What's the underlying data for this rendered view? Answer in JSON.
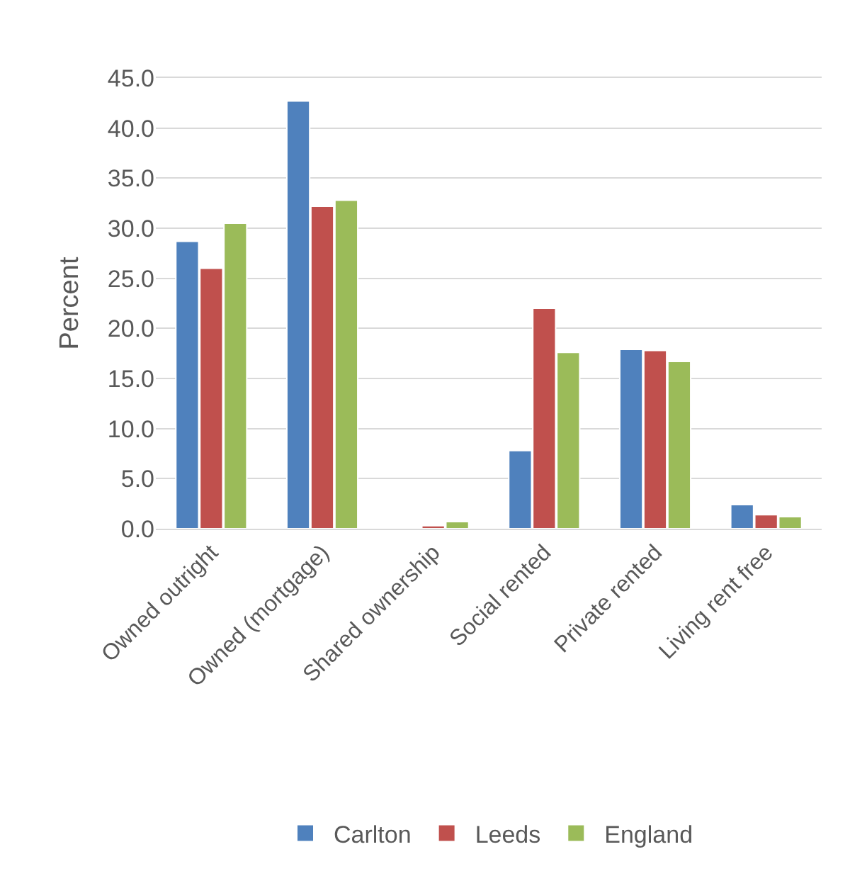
{
  "chart_data": {
    "type": "bar",
    "ylabel": "Percent",
    "categories": [
      "Owned outright",
      "Owned (mortgage)",
      "Shared ownership",
      "Social rented",
      "Private rented",
      "Living rent free"
    ],
    "series": [
      {
        "name": "Carlton",
        "color": "#4f81bd",
        "values": [
          28.7,
          42.7,
          null,
          7.8,
          17.9,
          2.4
        ]
      },
      {
        "name": "Leeds",
        "color": "#c0504d",
        "values": [
          26.0,
          32.2,
          0.3,
          22.0,
          17.8,
          1.4
        ]
      },
      {
        "name": "England",
        "color": "#9bbb59",
        "values": [
          30.5,
          32.8,
          0.7,
          17.6,
          16.7,
          1.2
        ]
      }
    ],
    "ylim": [
      0,
      45
    ],
    "yticks": [
      {
        "value": 0,
        "label": "0.0"
      },
      {
        "value": 5,
        "label": "5.0"
      },
      {
        "value": 10,
        "label": "10.0"
      },
      {
        "value": 15,
        "label": "15.0"
      },
      {
        "value": 20,
        "label": "20.0"
      },
      {
        "value": 25,
        "label": "25.0"
      },
      {
        "value": 30,
        "label": "30.0"
      },
      {
        "value": 35,
        "label": "35.0"
      },
      {
        "value": 40,
        "label": "40.0"
      },
      {
        "value": 45,
        "label": "45.0"
      }
    ],
    "grid": "y",
    "legend": "bottom"
  }
}
